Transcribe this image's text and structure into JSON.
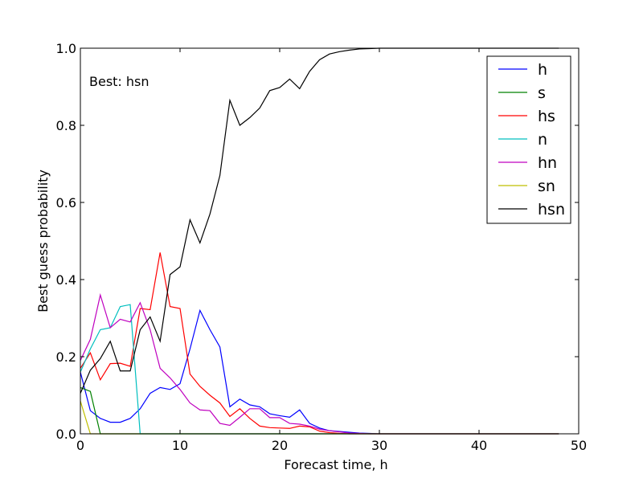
{
  "chart_data": {
    "type": "line",
    "title": "",
    "xlabel": "Forecast time, h",
    "ylabel": "Best guess probability",
    "xlim": [
      0,
      50
    ],
    "ylim": [
      0,
      1.0
    ],
    "x_ticks": [
      "0",
      "10",
      "20",
      "30",
      "40",
      "50"
    ],
    "y_ticks": [
      "0.0",
      "0.2",
      "0.4",
      "0.6",
      "0.8",
      "1.0"
    ],
    "grid": false,
    "legend_position": "top-right",
    "annotation": "Best: hsn",
    "x": [
      0,
      1,
      2,
      3,
      4,
      5,
      6,
      7,
      8,
      9,
      10,
      11,
      12,
      13,
      14,
      15,
      16,
      17,
      18,
      19,
      20,
      21,
      22,
      23,
      24,
      25,
      26,
      27,
      28,
      29,
      30,
      31,
      32,
      33,
      34,
      35,
      36,
      37,
      38,
      39,
      40,
      41,
      42,
      43,
      44,
      45,
      46,
      47,
      48
    ],
    "series": [
      {
        "name": "h",
        "color": "#0000ff",
        "values": [
          0.16,
          0.06,
          0.04,
          0.03,
          0.03,
          0.04,
          0.065,
          0.105,
          0.12,
          0.115,
          0.13,
          0.22,
          0.32,
          0.27,
          0.225,
          0.07,
          0.09,
          0.075,
          0.07,
          0.052,
          0.047,
          0.043,
          0.062,
          0.027,
          0.015,
          0.008,
          0.006,
          0.004,
          0.002,
          0.001,
          0,
          0,
          0,
          0,
          0,
          0,
          0,
          0,
          0,
          0,
          0,
          0,
          0,
          0,
          0,
          0,
          0,
          0,
          0
        ]
      },
      {
        "name": "s",
        "color": "#008000",
        "values": [
          0.12,
          0.11,
          0,
          0,
          0,
          0,
          0,
          0,
          0,
          0,
          0,
          0,
          0,
          0,
          0,
          0,
          0,
          0,
          0,
          0,
          0,
          0,
          0,
          0,
          0,
          0,
          0,
          0,
          0,
          0,
          0,
          0,
          0,
          0,
          0,
          0,
          0,
          0,
          0,
          0,
          0,
          0,
          0,
          0,
          0,
          0,
          0,
          0,
          0
        ]
      },
      {
        "name": "hs",
        "color": "#ff0000",
        "values": [
          0.17,
          0.21,
          0.14,
          0.182,
          0.183,
          0.175,
          0.325,
          0.322,
          0.47,
          0.33,
          0.325,
          0.155,
          0.123,
          0.1,
          0.08,
          0.045,
          0.065,
          0.04,
          0.02,
          0.016,
          0.015,
          0.014,
          0.02,
          0.018,
          0.007,
          0.003,
          0.001,
          0,
          0,
          0,
          0,
          0,
          0,
          0,
          0,
          0,
          0,
          0,
          0,
          0,
          0,
          0,
          0,
          0,
          0,
          0,
          0,
          0,
          0
        ]
      },
      {
        "name": "n",
        "color": "#00bfbf",
        "values": [
          0.16,
          0.22,
          0.27,
          0.275,
          0.33,
          0.335,
          0,
          0,
          0,
          0,
          0,
          0,
          0,
          0,
          0,
          0,
          0,
          0,
          0,
          0,
          0,
          0,
          0,
          0,
          0,
          0,
          0,
          0,
          0,
          0,
          0,
          0,
          0,
          0,
          0,
          0,
          0,
          0,
          0,
          0,
          0,
          0,
          0,
          0,
          0,
          0,
          0,
          0,
          0
        ]
      },
      {
        "name": "hn",
        "color": "#bf00bf",
        "values": [
          0.19,
          0.245,
          0.36,
          0.275,
          0.297,
          0.29,
          0.34,
          0.27,
          0.17,
          0.145,
          0.115,
          0.08,
          0.062,
          0.06,
          0.027,
          0.022,
          0.043,
          0.065,
          0.065,
          0.042,
          0.042,
          0.027,
          0.025,
          0.02,
          0.012,
          0.008,
          0.005,
          0.002,
          0.001,
          0,
          0,
          0,
          0,
          0,
          0,
          0,
          0,
          0,
          0,
          0,
          0,
          0,
          0,
          0,
          0,
          0,
          0,
          0,
          0
        ]
      },
      {
        "name": "sn",
        "color": "#bfbf00",
        "values": [
          0.085,
          0,
          0,
          0,
          0,
          0,
          0,
          0,
          0,
          0,
          0,
          0,
          0,
          0,
          0,
          0,
          0,
          0,
          0,
          0,
          0,
          0,
          0,
          0,
          0,
          0,
          0,
          0,
          0,
          0,
          0,
          0,
          0,
          0,
          0,
          0,
          0,
          0,
          0,
          0,
          0,
          0,
          0,
          0,
          0,
          0,
          0,
          0,
          0
        ]
      },
      {
        "name": "hsn",
        "color": "#000000",
        "values": [
          0.105,
          0.165,
          0.195,
          0.24,
          0.163,
          0.163,
          0.27,
          0.303,
          0.24,
          0.413,
          0.433,
          0.555,
          0.495,
          0.57,
          0.67,
          0.865,
          0.8,
          0.82,
          0.845,
          0.89,
          0.898,
          0.92,
          0.895,
          0.94,
          0.97,
          0.985,
          0.991,
          0.995,
          0.998,
          0.999,
          1.0,
          1.0,
          1.0,
          1.0,
          1.0,
          1.0,
          1.0,
          1.0,
          1.0,
          1.0,
          1.0,
          1.0,
          1.0,
          1.0,
          1.0,
          1.0,
          1.0,
          1.0,
          1.0
        ]
      }
    ]
  }
}
